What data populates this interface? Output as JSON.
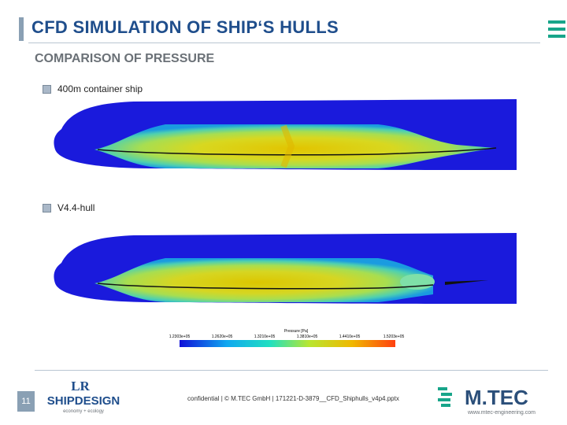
{
  "header": {
    "title": "CFD SIMULATION OF SHIP‘S HULLS",
    "subtitle": "COMPARISON OF PRESSURE"
  },
  "hulls": [
    {
      "label": "400m container ship"
    },
    {
      "label": "V4.4-hull"
    }
  ],
  "legend": {
    "title": "Pressure [Pa]",
    "ticks": [
      "1.2303e+05",
      "1.2620e+05",
      "1.3210e+05",
      "1.3810e+05",
      "1.4410e+05",
      "1.5203e+05"
    ]
  },
  "footer": {
    "page_number": "11",
    "text": "confidential   |  ©  M.TEC GmbH  |  171221-D-3879__CFD_Shiphulls_v4p4.pptx",
    "lr_top": "LR",
    "lr_name": "SHIPDESIGN",
    "lr_tagline": "economy + ecology",
    "mtec_name": "M.TEC",
    "mtec_url": "www.mtec-engineering.com"
  },
  "colors": {
    "title": "#1f4e8c",
    "accent": "#18a58a",
    "hull_blue": "#1a1adc"
  }
}
